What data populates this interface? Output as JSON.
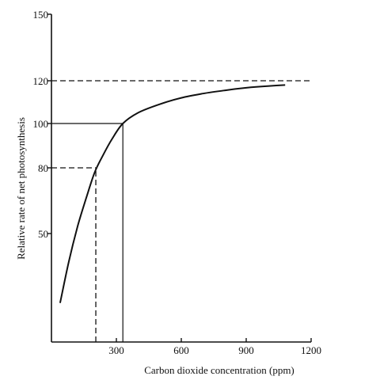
{
  "chart_data": {
    "type": "line",
    "title": "",
    "xlabel": "Carbon dioxide concentration (ppm)",
    "ylabel": "Relative rate of net photosynthesis",
    "xlim": [
      0,
      1200
    ],
    "ylim": [
      0,
      150
    ],
    "x_ticks": [
      300,
      600,
      900,
      1200
    ],
    "y_ticks": [
      50,
      80,
      100,
      120,
      150
    ],
    "grid": false,
    "series": [
      {
        "x": [
          40,
          80,
          120,
          160,
          200,
          240,
          280,
          330,
          400,
          500,
          600,
          700,
          800,
          900,
          1000,
          1080
        ],
        "y": [
          18,
          37,
          53,
          66,
          78,
          86,
          93,
          100,
          105,
          109,
          112,
          114,
          115.5,
          116.7,
          117.5,
          118
        ]
      }
    ],
    "reference_lines": [
      {
        "style": "dashed",
        "y": 120,
        "x_from": 0,
        "x_to": 1200
      },
      {
        "style": "solid",
        "y": 100,
        "x_from": 0,
        "x_to": 330
      },
      {
        "style": "solid",
        "x": 330,
        "y_from": 0,
        "y_to": 100
      },
      {
        "style": "dashed",
        "y": 80,
        "x_from": 0,
        "x_to": 205
      },
      {
        "style": "dashed",
        "x": 205,
        "y_from": 0,
        "y_to": 80
      }
    ]
  }
}
